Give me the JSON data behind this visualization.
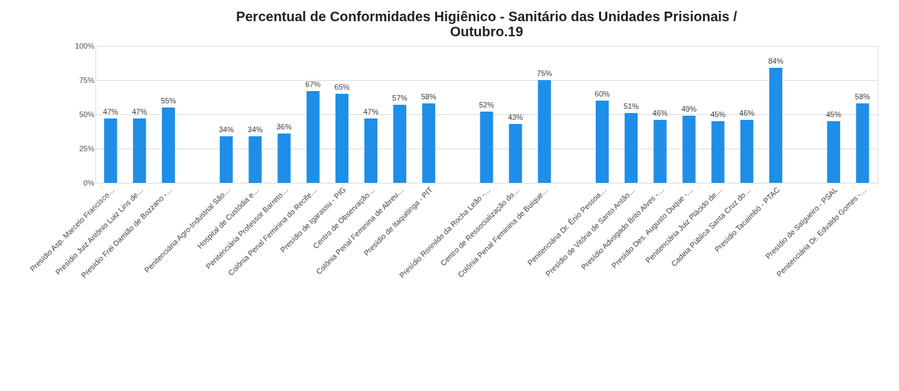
{
  "chart_data": {
    "type": "bar",
    "title": "Percentual de Conformidades Higiênico - Sanitário das Unidades Prisionais / Outubro.19",
    "categories": [
      "Presídio Asp. Marcelo Francisco…",
      "Presídio Juiz Antônio Luiz Lins de…",
      "Presídio Frei Damião de Bozzano -…",
      null,
      "Penitenciária Agro-Industrial São…",
      "Hospital de Custódia e…",
      "Penitenciária Professor Barreto…",
      "Colônia Penal Feminina do Recife…",
      "Presídio de Igarassu - PIG",
      "Centro de Observação…",
      "Colônia Penal Feminina de Abreu…",
      "Presídio de Itaquitinga - PIT",
      null,
      "Presídio Rorinildo da Rocha Leão -…",
      "Centro de Ressocialização do…",
      "Colônia Penal Feminina de Buíque…",
      null,
      "Penitenciária Dr. Ênio Pessoa…",
      "Presídio de Vitória de Santo Antão…",
      "Presídio Advogado Brito Alves -…",
      "Presídio Des. Augusto Duque -…",
      "Penitenciária Juiz Plácido de…",
      "Cadeia Pública Santa Cruz do…",
      "Presídio Tacaimbó - PTAC",
      null,
      "Presídio de Salgueiro - PSAL",
      "Penitenciária Dr. Edvaldo Gomes -…"
    ],
    "values": [
      47,
      47,
      55,
      null,
      34,
      34,
      36,
      67,
      65,
      47,
      57,
      58,
      null,
      52,
      43,
      75,
      null,
      60,
      51,
      46,
      49,
      45,
      46,
      84,
      null,
      45,
      58
    ],
    "value_labels": [
      "47%",
      "47%",
      "55%",
      null,
      "34%",
      "34%",
      "36%",
      "67%",
      "65%",
      "47%",
      "57%",
      "58%",
      null,
      "52%",
      "43%",
      "75%",
      null,
      "60%",
      "51%",
      "46%",
      "49%",
      "45%",
      "46%",
      "84%",
      null,
      "45%",
      "58%"
    ],
    "color": "#1e8ee8",
    "ylim": [
      0,
      100
    ],
    "yticks": [
      {
        "value": 0,
        "label": "0%"
      },
      {
        "value": 25,
        "label": "25%"
      },
      {
        "value": 50,
        "label": "50%"
      },
      {
        "value": 75,
        "label": "75%"
      },
      {
        "value": 100,
        "label": "100%"
      }
    ],
    "grid": "y"
  }
}
